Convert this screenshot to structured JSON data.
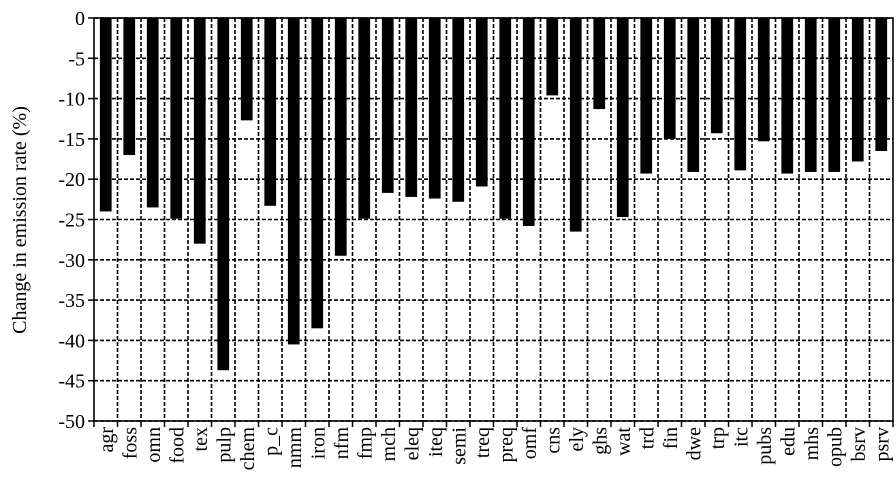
{
  "chart_data": {
    "type": "bar",
    "title": "",
    "xlabel": "",
    "ylabel": "Change in emission rate (%)",
    "ylim": [
      -50,
      0
    ],
    "ytick_step": 5,
    "grid": true,
    "grid_style": "dashed",
    "legend": "none",
    "bar_color": "#000000",
    "categories": [
      "agr",
      "foss",
      "omn",
      "food",
      "tex",
      "pulp",
      "chem",
      "p_c",
      "nmm",
      "iron",
      "nfm",
      "fmp",
      "mch",
      "eleq",
      "iteq",
      "semi",
      "treq",
      "preq",
      "omf",
      "cns",
      "ely",
      "ghs",
      "wat",
      "trd",
      "fin",
      "dwe",
      "trp",
      "itc",
      "pubs",
      "edu",
      "mhs",
      "opub",
      "bsrv",
      "psrv"
    ],
    "values": [
      -24.0,
      -17.0,
      -23.5,
      -24.9,
      -28.0,
      -43.7,
      -12.7,
      -23.3,
      -40.5,
      -38.5,
      -29.5,
      -24.9,
      -21.7,
      -22.2,
      -22.4,
      -22.8,
      -20.9,
      -24.9,
      -25.8,
      -9.6,
      -26.5,
      -11.3,
      -24.7,
      -19.3,
      -15.0,
      -19.1,
      -14.3,
      -18.9,
      -15.3,
      -19.3,
      -19.1,
      -19.1,
      -17.8,
      -16.5
    ]
  }
}
